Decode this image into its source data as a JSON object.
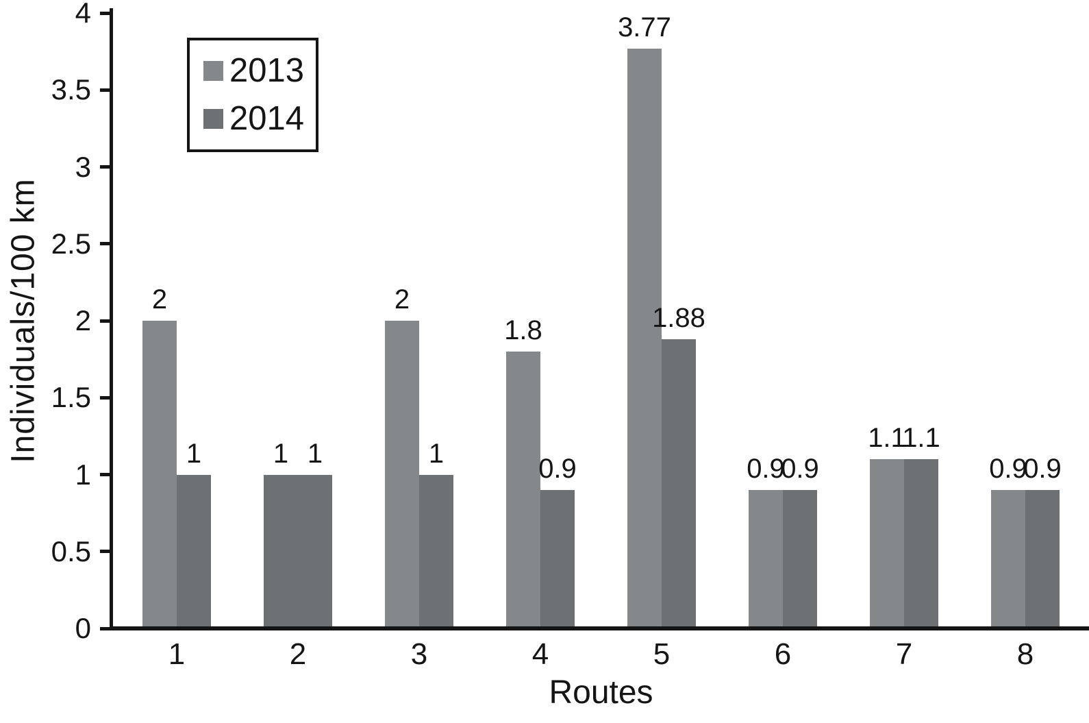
{
  "chart_data": {
    "type": "bar",
    "title": "",
    "xlabel": "Routes",
    "ylabel": "Individuals/100 km",
    "categories": [
      "1",
      "2",
      "3",
      "4",
      "5",
      "6",
      "7",
      "8"
    ],
    "ylim": [
      0,
      4
    ],
    "ytick_labels": [
      "0",
      "0.5",
      "1",
      "1.5",
      "2",
      "2.5",
      "3",
      "3.5",
      "4"
    ],
    "grid": false,
    "legend_position": "top-left",
    "axis_color": "#151515",
    "text_color": "#151515",
    "series": [
      {
        "name": "2013",
        "color": "#85888b",
        "values": [
          2,
          1,
          2,
          1.8,
          3.77,
          0.9,
          1.1,
          0.9
        ],
        "labels": [
          "2",
          "1",
          "2",
          "1.8",
          "3.77",
          "0.9",
          "1.1",
          "0.9"
        ],
        "point_color_overrides": {
          "1": "#6e7173"
        }
      },
      {
        "name": "2014",
        "color": "#6e7173",
        "values": [
          1,
          1,
          1,
          0.9,
          1.88,
          0.9,
          1.1,
          0.9
        ],
        "labels": [
          "1",
          "1",
          "1",
          "0.9",
          "1.88",
          "0.9",
          "1.1",
          "0.9"
        ],
        "point_color_overrides": {}
      }
    ]
  }
}
